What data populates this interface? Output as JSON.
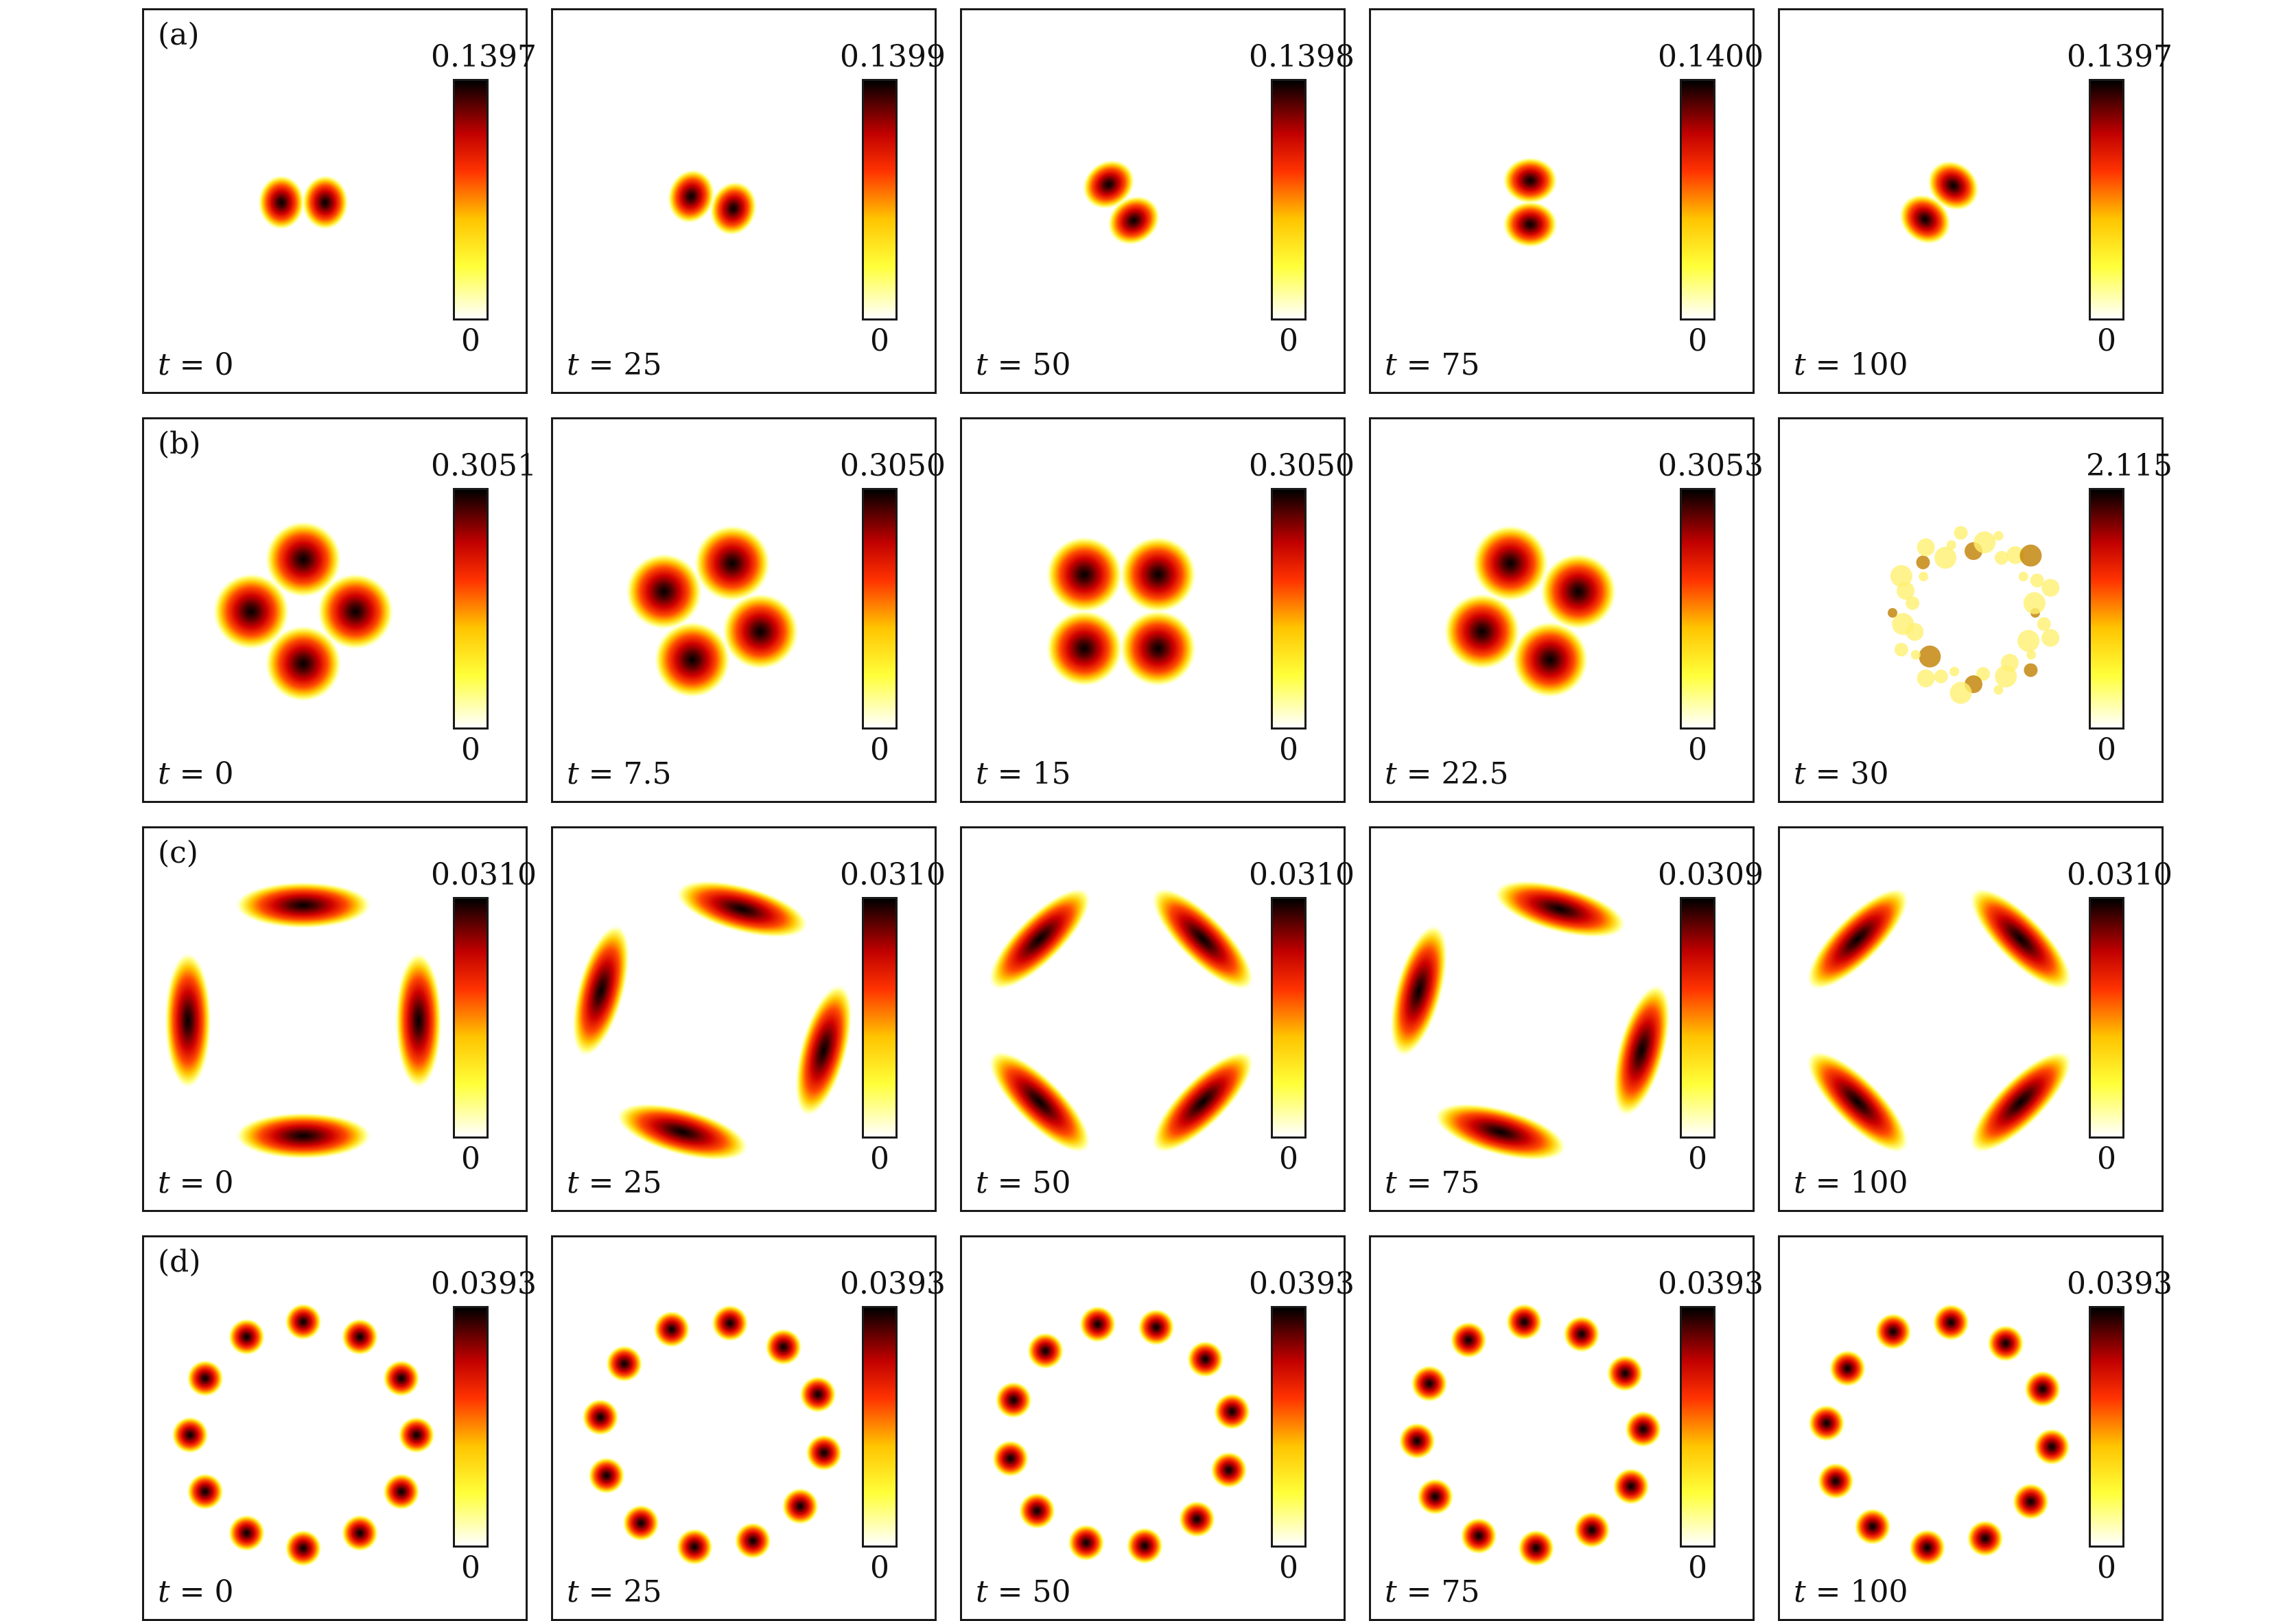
{
  "colors": {
    "white": "#ffffff",
    "yellow": "#ffff3a",
    "orange": "#ffc400",
    "red": "#ff3300",
    "darkred": "#5a0000",
    "black": "#000000"
  },
  "colorbar": {
    "min_label": "0"
  },
  "rows": [
    {
      "label": "(a)",
      "panels": [
        {
          "t": "0",
          "max": "0.1397"
        },
        {
          "t": "25",
          "max": "0.1399"
        },
        {
          "t": "50",
          "max": "0.1398"
        },
        {
          "t": "75",
          "max": "0.1400"
        },
        {
          "t": "100",
          "max": "0.1397"
        }
      ]
    },
    {
      "label": "(b)",
      "panels": [
        {
          "t": "0",
          "max": "0.3051"
        },
        {
          "t": "7.5",
          "max": "0.3050"
        },
        {
          "t": "15",
          "max": "0.3050"
        },
        {
          "t": "22.5",
          "max": "0.3053"
        },
        {
          "t": "30",
          "max": "2.115"
        }
      ]
    },
    {
      "label": "(c)",
      "panels": [
        {
          "t": "0",
          "max": "0.0310"
        },
        {
          "t": "25",
          "max": "0.0310"
        },
        {
          "t": "50",
          "max": "0.0310"
        },
        {
          "t": "75",
          "max": "0.0309"
        },
        {
          "t": "100",
          "max": "0.0310"
        }
      ]
    },
    {
      "label": "(d)",
      "panels": [
        {
          "t": "0",
          "max": "0.0393"
        },
        {
          "t": "25",
          "max": "0.0393"
        },
        {
          "t": "50",
          "max": "0.0393"
        },
        {
          "t": "75",
          "max": "0.0393"
        },
        {
          "t": "100",
          "max": "0.0393"
        }
      ]
    }
  ]
}
